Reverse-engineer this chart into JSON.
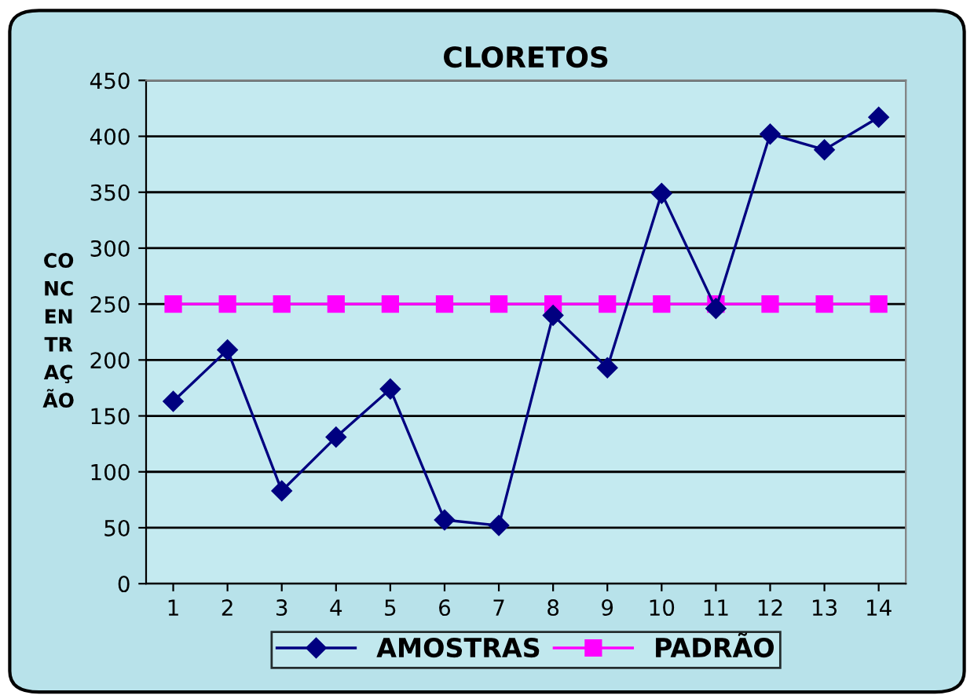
{
  "chart_data": {
    "type": "line",
    "title": "CLORETOS",
    "ylabel": "CO\nNC\nEN\nTR\nAÇ\nÃO",
    "categories": [
      "1",
      "2",
      "3",
      "4",
      "5",
      "6",
      "7",
      "8",
      "9",
      "10",
      "11",
      "12",
      "13",
      "14"
    ],
    "series": [
      {
        "name": "AMOSTRAS",
        "color": "#000080",
        "marker": "diamond",
        "values": [
          163,
          209,
          83,
          131,
          174,
          57,
          52,
          240,
          193,
          349,
          246,
          402,
          388,
          417
        ]
      },
      {
        "name": "PADRÃO",
        "color": "#ff00ff",
        "marker": "square",
        "values": [
          250,
          250,
          250,
          250,
          250,
          250,
          250,
          250,
          250,
          250,
          250,
          250,
          250,
          250
        ]
      }
    ],
    "ylim": [
      0,
      450
    ],
    "yticks": [
      0,
      50,
      100,
      150,
      200,
      250,
      300,
      350,
      400,
      450
    ],
    "grid": "y",
    "legend": "bottom",
    "line_style": "solid"
  }
}
